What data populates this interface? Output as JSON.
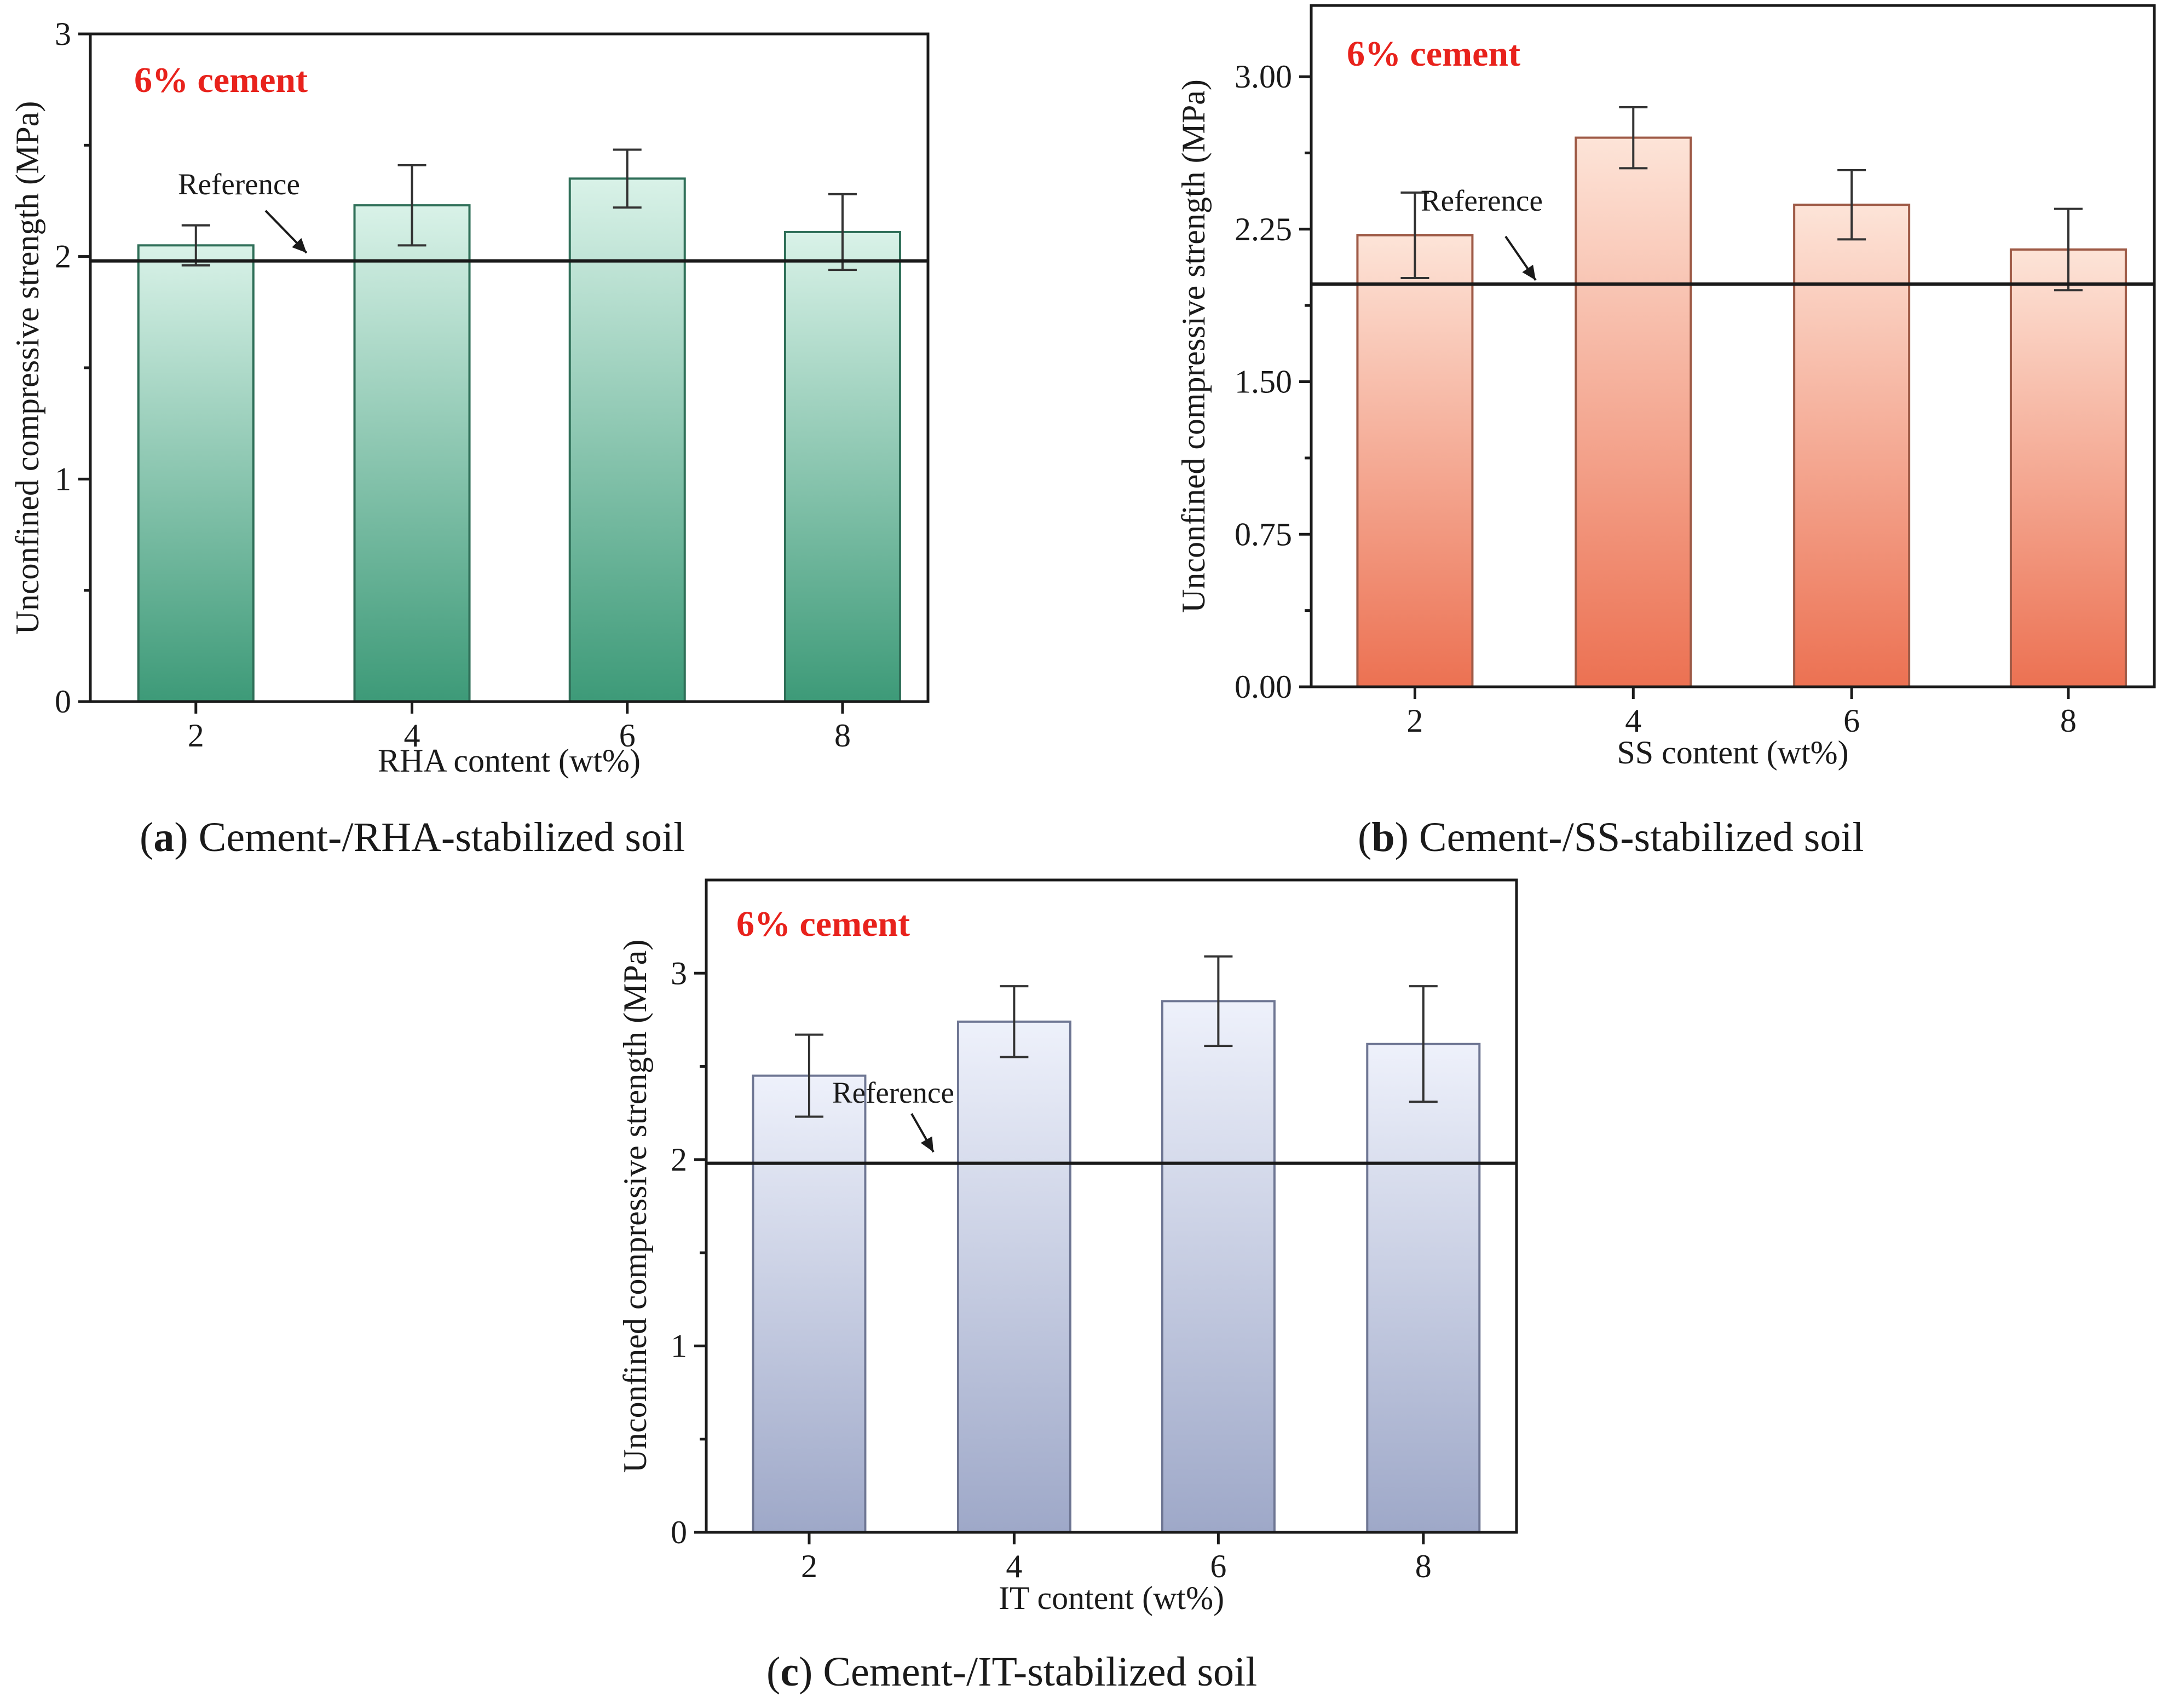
{
  "chart_data": [
    {
      "type": "bar",
      "panel": "a",
      "title": "",
      "annotation": "6% cement",
      "reference_label": "Reference",
      "reference_value": 1.98,
      "xlabel": "RHA content (wt%)",
      "ylabel": "Unconfined compressive strength (MPa)",
      "categories": [
        "2",
        "4",
        "6",
        "8"
      ],
      "values": [
        2.05,
        2.23,
        2.35,
        2.11
      ],
      "errors": [
        0.09,
        0.18,
        0.13,
        0.17
      ],
      "ylim": [
        0,
        3
      ],
      "yticks": [
        "0",
        "1",
        "2",
        "3"
      ],
      "grid": false,
      "colors": {
        "top": "#d9f2e8",
        "bottom": "#3d9a78",
        "stroke": "#2f6f58"
      },
      "caption_letter": "a",
      "caption_text": "Cement-/RHA-stabilized soil"
    },
    {
      "type": "bar",
      "panel": "b",
      "title": "",
      "annotation": "6% cement",
      "reference_label": "Reference",
      "reference_value": 1.98,
      "xlabel": "SS content (wt%)",
      "ylabel": "Unconfined compressive strength (MPa)",
      "categories": [
        "2",
        "4",
        "6",
        "8"
      ],
      "values": [
        2.22,
        2.7,
        2.37,
        2.15
      ],
      "errors": [
        0.21,
        0.15,
        0.17,
        0.2
      ],
      "ylim": [
        0,
        3.35
      ],
      "yticks": [
        "0.00",
        "0.75",
        "1.50",
        "2.25",
        "3.00"
      ],
      "grid": false,
      "colors": {
        "top": "#fde4d8",
        "bottom": "#ec7152",
        "stroke": "#9e5a46"
      },
      "caption_letter": "b",
      "caption_text": "Cement-/SS-stabilized soil"
    },
    {
      "type": "bar",
      "panel": "c",
      "title": "",
      "annotation": "6% cement",
      "reference_label": "Reference",
      "reference_value": 1.98,
      "xlabel": "IT content (wt%)",
      "ylabel": "Unconfined compressive strength (MPa)",
      "categories": [
        "2",
        "4",
        "6",
        "8"
      ],
      "values": [
        2.45,
        2.74,
        2.85,
        2.62
      ],
      "errors": [
        0.22,
        0.19,
        0.24,
        0.31
      ],
      "ylim": [
        0,
        3.5
      ],
      "yticks": [
        "0",
        "1",
        "2",
        "3"
      ],
      "grid": false,
      "colors": {
        "top": "#eef1fb",
        "bottom": "#9ea8c8",
        "stroke": "#6e7693"
      },
      "caption_letter": "c",
      "caption_text": "Cement-/IT-stabilized soil"
    }
  ]
}
